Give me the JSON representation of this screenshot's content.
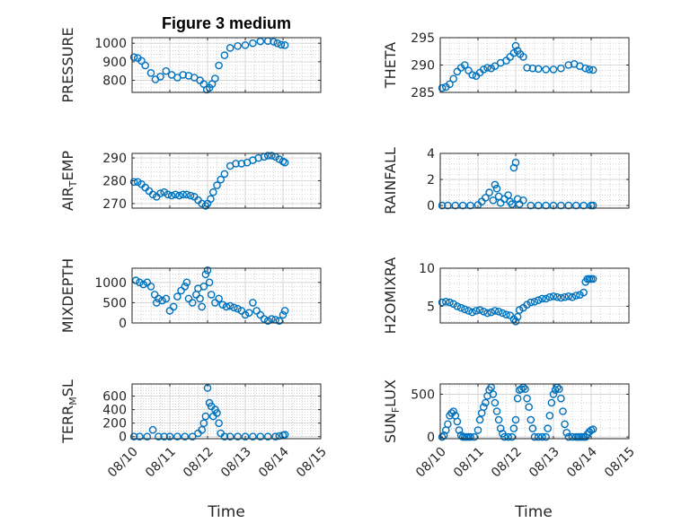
{
  "figure": {
    "title": "Figure 3 medium",
    "xlabel": "Time",
    "marker_color": "#0072BD",
    "axis_color": "#262626",
    "grid_color": "#b8b8b8"
  },
  "chart_data": [
    {
      "type": "scatter",
      "ylabel": "PRESSURE",
      "ylabel_sub": null,
      "ylim": [
        735,
        1030
      ],
      "yticks": [
        800,
        900,
        1000
      ],
      "xlim": [
        0,
        5
      ],
      "xticks": [
        "08/10",
        "08/11",
        "08/12",
        "08/13",
        "08/14",
        "08/15"
      ],
      "grid": true,
      "x": [
        0.05,
        0.15,
        0.25,
        0.35,
        0.5,
        0.62,
        0.75,
        0.9,
        1.05,
        1.2,
        1.35,
        1.5,
        1.65,
        1.8,
        1.9,
        1.98,
        2.05,
        2.12,
        2.2,
        2.3,
        2.45,
        2.6,
        2.8,
        3.0,
        3.2,
        3.4,
        3.6,
        3.75,
        3.85,
        3.95,
        4.05
      ],
      "y": [
        925,
        920,
        905,
        880,
        840,
        805,
        820,
        850,
        830,
        815,
        830,
        825,
        815,
        800,
        780,
        750,
        760,
        780,
        810,
        880,
        935,
        975,
        985,
        990,
        1000,
        1010,
        1012,
        1008,
        1000,
        992,
        990
      ]
    },
    {
      "type": "scatter",
      "ylabel": "THETA",
      "ylabel_sub": null,
      "ylim": [
        285,
        295
      ],
      "yticks": [
        285,
        290,
        295
      ],
      "xlim": [
        0,
        5
      ],
      "xticks": [
        "08/10",
        "08/11",
        "08/12",
        "08/13",
        "08/14",
        "08/15"
      ],
      "grid": true,
      "x": [
        0.05,
        0.15,
        0.25,
        0.35,
        0.45,
        0.55,
        0.65,
        0.75,
        0.85,
        0.95,
        1.05,
        1.15,
        1.25,
        1.35,
        1.45,
        1.6,
        1.75,
        1.85,
        1.95,
        2.0,
        2.05,
        2.12,
        2.2,
        2.3,
        2.45,
        2.6,
        2.8,
        3.0,
        3.2,
        3.4,
        3.55,
        3.7,
        3.85,
        3.95,
        4.05
      ],
      "y": [
        285.8,
        286,
        286.5,
        287.5,
        288.8,
        289.5,
        290,
        289,
        288.2,
        288,
        288.6,
        289.2,
        289.5,
        289.4,
        289.8,
        290.4,
        290.8,
        291.5,
        292.2,
        293.5,
        292.6,
        292,
        291.5,
        289.5,
        289.4,
        289.3,
        289.2,
        289.2,
        289.4,
        290,
        290.2,
        289.8,
        289.4,
        289.2,
        289.1
      ]
    },
    {
      "type": "scatter",
      "ylabel": "AIR",
      "ylabel_sub": "T",
      "ylabel_after": "EMP",
      "ylim": [
        268,
        292
      ],
      "yticks": [
        270,
        280,
        290
      ],
      "xlim": [
        0,
        5
      ],
      "xticks": [
        "08/10",
        "08/11",
        "08/12",
        "08/13",
        "08/14",
        "08/15"
      ],
      "grid": true,
      "x": [
        0.05,
        0.15,
        0.25,
        0.35,
        0.45,
        0.55,
        0.65,
        0.75,
        0.85,
        0.95,
        1.05,
        1.15,
        1.25,
        1.35,
        1.45,
        1.55,
        1.65,
        1.75,
        1.85,
        1.95,
        2.0,
        2.08,
        2.15,
        2.25,
        2.35,
        2.45,
        2.6,
        2.75,
        2.9,
        3.05,
        3.2,
        3.35,
        3.5,
        3.6,
        3.7,
        3.8,
        3.9,
        4.0,
        4.05
      ],
      "y": [
        279.5,
        279.5,
        278.5,
        277,
        275.5,
        274,
        273,
        274.5,
        275,
        274,
        273.5,
        274,
        273.5,
        274,
        274,
        273.5,
        273,
        271.5,
        270,
        269,
        270,
        272,
        275,
        278,
        280.5,
        283,
        286.5,
        287.5,
        287.5,
        288,
        289,
        290,
        290.5,
        291,
        291,
        290.5,
        289.5,
        288.5,
        288
      ]
    },
    {
      "type": "scatter",
      "ylabel": "RAINFALL",
      "ylabel_sub": null,
      "ylim": [
        -0.2,
        4
      ],
      "yticks": [
        0,
        2,
        4
      ],
      "xlim": [
        0,
        5
      ],
      "xticks": [
        "08/10",
        "08/11",
        "08/12",
        "08/13",
        "08/14",
        "08/15"
      ],
      "grid": true,
      "x": [
        0.05,
        0.2,
        0.4,
        0.6,
        0.8,
        1.0,
        1.1,
        1.2,
        1.3,
        1.4,
        1.45,
        1.5,
        1.55,
        1.6,
        1.7,
        1.8,
        1.85,
        1.9,
        1.95,
        2.0,
        2.05,
        2.1,
        2.2,
        2.4,
        2.6,
        2.8,
        3.0,
        3.2,
        3.4,
        3.6,
        3.8,
        4.0,
        4.05
      ],
      "y": [
        0,
        0,
        0,
        0,
        0,
        0.05,
        0.3,
        0.6,
        1.0,
        0.4,
        1.6,
        1.3,
        0.7,
        0.2,
        0.5,
        0.8,
        0.3,
        0.1,
        2.9,
        3.3,
        0.5,
        0.1,
        0.4,
        0,
        0,
        0,
        0,
        0,
        0,
        0,
        0,
        0,
        0
      ]
    },
    {
      "type": "scatter",
      "ylabel": "MIXDEPTH",
      "ylabel_sub": null,
      "ylim": [
        0,
        1350
      ],
      "yticks": [
        0,
        500,
        1000
      ],
      "xlim": [
        0,
        5
      ],
      "xticks": [
        "08/10",
        "08/11",
        "08/12",
        "08/13",
        "08/14",
        "08/15"
      ],
      "grid": true,
      "x": [
        0.1,
        0.2,
        0.3,
        0.4,
        0.5,
        0.6,
        0.65,
        0.7,
        0.8,
        0.9,
        1.0,
        1.1,
        1.2,
        1.3,
        1.4,
        1.45,
        1.5,
        1.6,
        1.7,
        1.75,
        1.8,
        1.85,
        1.9,
        1.95,
        2.0,
        2.05,
        2.1,
        2.2,
        2.3,
        2.4,
        2.5,
        2.6,
        2.7,
        2.8,
        2.9,
        3.0,
        3.1,
        3.2,
        3.3,
        3.4,
        3.5,
        3.6,
        3.7,
        3.8,
        3.9,
        4.0,
        4.05
      ],
      "y": [
        1050,
        1000,
        950,
        1000,
        900,
        700,
        500,
        600,
        550,
        600,
        300,
        400,
        650,
        800,
        900,
        1000,
        600,
        500,
        700,
        850,
        600,
        400,
        900,
        1200,
        1300,
        1000,
        700,
        500,
        600,
        450,
        400,
        420,
        380,
        350,
        300,
        200,
        250,
        500,
        300,
        200,
        100,
        50,
        100,
        80,
        50,
        200,
        300
      ]
    },
    {
      "type": "scatter",
      "ylabel": "H2OMIXRA",
      "ylabel_sub": null,
      "ylim": [
        2.8,
        10
      ],
      "yticks": [
        5,
        10
      ],
      "xlim": [
        0,
        5
      ],
      "xticks": [
        "08/10",
        "08/11",
        "08/12",
        "08/13",
        "08/14",
        "08/15"
      ],
      "grid": true,
      "x": [
        0.05,
        0.15,
        0.25,
        0.35,
        0.45,
        0.55,
        0.65,
        0.75,
        0.85,
        0.95,
        1.05,
        1.15,
        1.25,
        1.35,
        1.45,
        1.55,
        1.65,
        1.75,
        1.85,
        1.95,
        2.0,
        2.05,
        2.1,
        2.2,
        2.3,
        2.4,
        2.5,
        2.6,
        2.7,
        2.8,
        2.9,
        3.0,
        3.1,
        3.2,
        3.3,
        3.4,
        3.5,
        3.6,
        3.7,
        3.8,
        3.85,
        3.9,
        3.95,
        4.0,
        4.05
      ],
      "y": [
        5.5,
        5.6,
        5.5,
        5.3,
        5.0,
        4.8,
        4.6,
        4.4,
        4.2,
        4.4,
        4.5,
        4.3,
        4.1,
        4.2,
        4.4,
        4.3,
        4.1,
        3.9,
        3.8,
        3.3,
        3.0,
        3.6,
        4.5,
        4.8,
        5.2,
        5.5,
        5.6,
        5.8,
        6.0,
        6.0,
        6.2,
        6.3,
        6.2,
        6.1,
        6.2,
        6.3,
        6.2,
        6.4,
        6.5,
        6.8,
        8.2,
        8.6,
        8.6,
        8.6,
        8.6
      ]
    },
    {
      "type": "scatter",
      "ylabel": "TERR",
      "ylabel_sub": "M",
      "ylabel_after": "SL",
      "ylim": [
        -30,
        780
      ],
      "yticks": [
        0,
        200,
        400,
        600
      ],
      "xlim": [
        0,
        5
      ],
      "xticks": [
        "08/10",
        "08/11",
        "08/12",
        "08/13",
        "08/14",
        "08/15"
      ],
      "grid": true,
      "x": [
        0.05,
        0.2,
        0.4,
        0.55,
        0.7,
        0.85,
        1.0,
        1.2,
        1.4,
        1.6,
        1.75,
        1.85,
        1.9,
        1.95,
        2.0,
        2.05,
        2.1,
        2.15,
        2.2,
        2.25,
        2.3,
        2.35,
        2.45,
        2.6,
        2.8,
        3.0,
        3.2,
        3.4,
        3.6,
        3.8,
        3.9,
        4.0,
        4.05
      ],
      "y": [
        0,
        0,
        0,
        100,
        0,
        0,
        0,
        0,
        0,
        0,
        50,
        100,
        200,
        300,
        720,
        500,
        450,
        300,
        400,
        350,
        200,
        50,
        0,
        0,
        0,
        0,
        0,
        0,
        0,
        0,
        10,
        20,
        30
      ]
    },
    {
      "type": "scatter",
      "ylabel": "SUN",
      "ylabel_sub": "F",
      "ylabel_after": "LUX",
      "ylim": [
        -20,
        620
      ],
      "yticks": [
        0,
        500
      ],
      "xlim": [
        0,
        5
      ],
      "xticks": [
        "08/10",
        "08/11",
        "08/12",
        "08/13",
        "08/14",
        "08/15"
      ],
      "grid": true,
      "x": [
        0.05,
        0.1,
        0.15,
        0.2,
        0.25,
        0.3,
        0.35,
        0.4,
        0.45,
        0.5,
        0.55,
        0.6,
        0.65,
        0.7,
        0.75,
        0.8,
        0.9,
        1.0,
        1.05,
        1.1,
        1.15,
        1.2,
        1.25,
        1.3,
        1.35,
        1.4,
        1.45,
        1.5,
        1.55,
        1.6,
        1.65,
        1.7,
        1.8,
        1.9,
        1.95,
        2.0,
        2.05,
        2.1,
        2.15,
        2.2,
        2.25,
        2.3,
        2.35,
        2.4,
        2.45,
        2.5,
        2.6,
        2.7,
        2.8,
        2.85,
        2.9,
        2.95,
        3.0,
        3.05,
        3.1,
        3.15,
        3.2,
        3.25,
        3.3,
        3.35,
        3.4,
        3.5,
        3.6,
        3.65,
        3.7,
        3.75,
        3.8,
        3.85,
        3.9,
        3.95,
        4.0,
        4.05
      ],
      "y": [
        0,
        20,
        80,
        150,
        250,
        280,
        300,
        250,
        180,
        80,
        20,
        0,
        0,
        0,
        0,
        0,
        0,
        80,
        200,
        280,
        350,
        400,
        480,
        550,
        580,
        500,
        400,
        300,
        200,
        100,
        40,
        0,
        0,
        0,
        100,
        200,
        450,
        550,
        560,
        580,
        560,
        450,
        350,
        200,
        100,
        0,
        0,
        0,
        0,
        100,
        250,
        400,
        500,
        550,
        580,
        560,
        450,
        300,
        150,
        50,
        0,
        0,
        0,
        0,
        0,
        0,
        0,
        0,
        30,
        60,
        80,
        90
      ]
    }
  ]
}
